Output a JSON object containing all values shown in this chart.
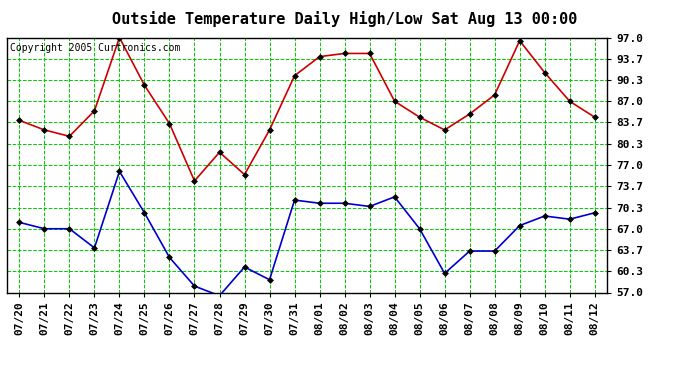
{
  "title": "Outside Temperature Daily High/Low Sat Aug 13 00:00",
  "copyright_text": "Copyright 2005 Curtronics.com",
  "labels": [
    "07/20",
    "07/21",
    "07/22",
    "07/23",
    "07/24",
    "07/25",
    "07/26",
    "07/27",
    "07/28",
    "07/29",
    "07/30",
    "07/31",
    "08/01",
    "08/02",
    "08/03",
    "08/04",
    "08/05",
    "08/06",
    "08/07",
    "08/08",
    "08/09",
    "08/10",
    "08/11",
    "08/12"
  ],
  "high_temps": [
    84.0,
    82.5,
    81.5,
    85.5,
    97.0,
    89.5,
    83.5,
    74.5,
    79.0,
    75.5,
    82.5,
    91.0,
    94.0,
    94.5,
    94.5,
    87.0,
    84.5,
    82.5,
    85.0,
    88.0,
    96.5,
    91.5,
    87.0,
    84.5
  ],
  "low_temps": [
    68.0,
    67.0,
    67.0,
    64.0,
    76.0,
    69.5,
    62.5,
    58.0,
    56.5,
    61.0,
    59.0,
    71.5,
    71.0,
    71.0,
    70.5,
    72.0,
    67.0,
    60.0,
    63.5,
    63.5,
    67.5,
    69.0,
    68.5,
    69.5
  ],
  "high_color": "#cc0000",
  "low_color": "#0000cc",
  "bg_color": "#ffffff",
  "grid_color": "#00cc00",
  "yticks": [
    57.0,
    60.3,
    63.7,
    67.0,
    70.3,
    73.7,
    77.0,
    80.3,
    83.7,
    87.0,
    90.3,
    93.7,
    97.0
  ],
  "ymin": 57.0,
  "ymax": 97.0,
  "title_fontsize": 11,
  "copyright_fontsize": 7,
  "tick_fontsize": 8,
  "marker": "D",
  "marker_size": 3,
  "linewidth": 1.2
}
